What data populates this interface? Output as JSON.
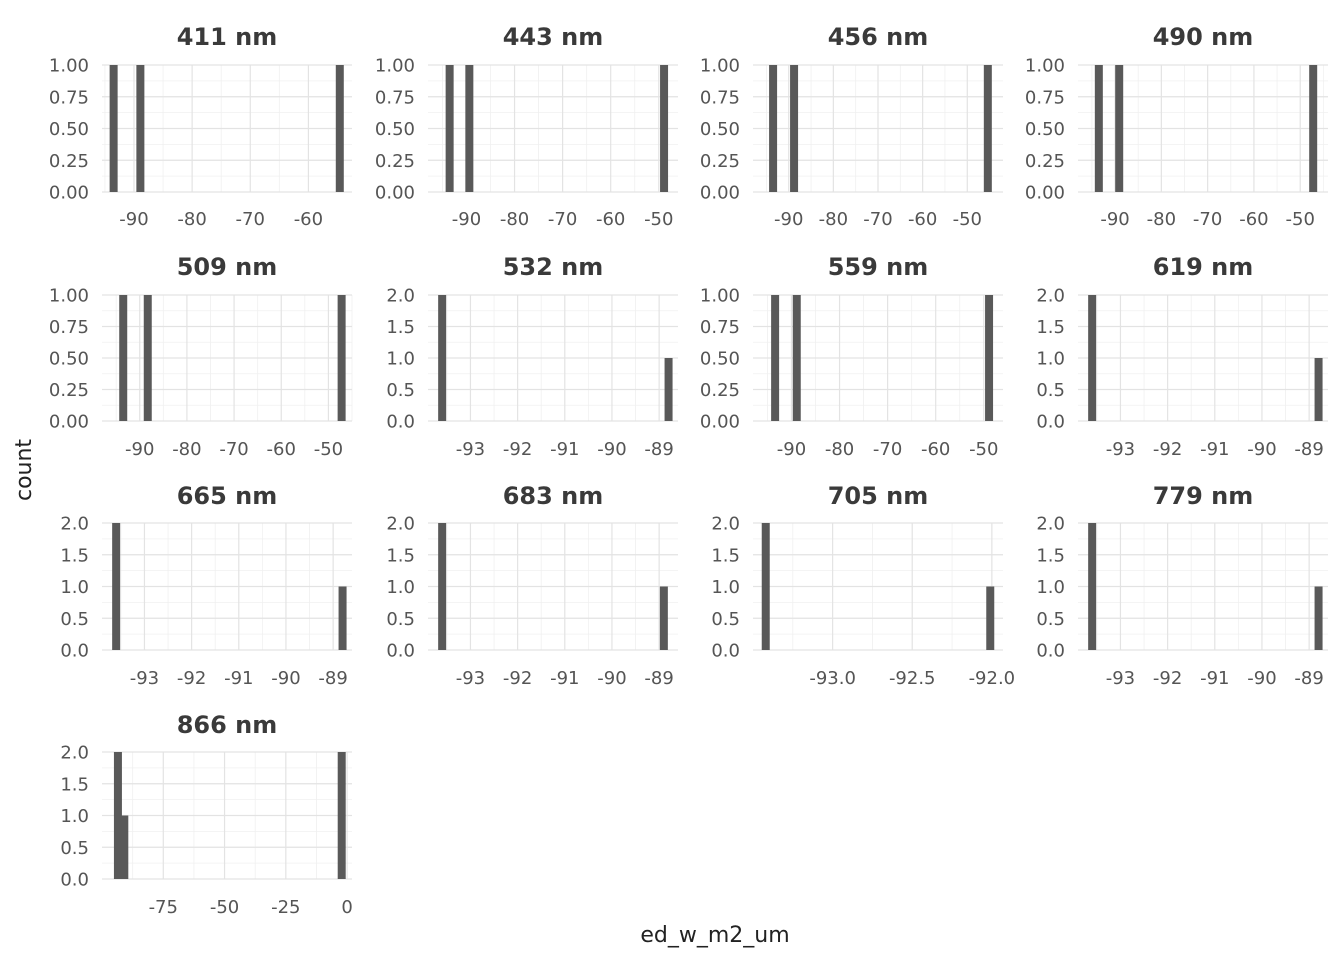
{
  "chart_data": {
    "type": "bar",
    "layout": "facet grid, 4 columns",
    "xlabel": "ed_w_m2_um",
    "ylabel": "count",
    "grid": true,
    "panels": [
      {
        "title": "411 nm",
        "xlim": [
          -95.5,
          -52.5
        ],
        "ylim": [
          0,
          1
        ],
        "xticks": [
          -90,
          -80,
          -70,
          -60
        ],
        "yticks": [
          0,
          0.25,
          0.5,
          0.75,
          1
        ],
        "yticklabels": [
          "0.00",
          "0.25",
          "0.50",
          "0.75",
          "1.00"
        ],
        "xticklabels": [
          "-90",
          "-80",
          "-70",
          "-60"
        ],
        "bars": [
          {
            "x": -93.5,
            "y": 1
          },
          {
            "x": -88.9,
            "y": 1
          },
          {
            "x": -54.6,
            "y": 1
          }
        ]
      },
      {
        "title": "443 nm",
        "xlim": [
          -98,
          -46
        ],
        "ylim": [
          0,
          1
        ],
        "xticks": [
          -90,
          -80,
          -70,
          -60,
          -50
        ],
        "yticks": [
          0,
          0.25,
          0.5,
          0.75,
          1
        ],
        "yticklabels": [
          "0.00",
          "0.25",
          "0.50",
          "0.75",
          "1.00"
        ],
        "xticklabels": [
          "-90",
          "-80",
          "-70",
          "-60",
          "-50"
        ],
        "bars": [
          {
            "x": -93.5,
            "y": 1
          },
          {
            "x": -89.4,
            "y": 1
          },
          {
            "x": -48.9,
            "y": 1
          }
        ]
      },
      {
        "title": "456 nm",
        "xlim": [
          -98,
          -42
        ],
        "ylim": [
          0,
          1
        ],
        "xticks": [
          -90,
          -80,
          -70,
          -60,
          -50
        ],
        "yticks": [
          0,
          0.25,
          0.5,
          0.75,
          1
        ],
        "yticklabels": [
          "0.00",
          "0.25",
          "0.50",
          "0.75",
          "1.00"
        ],
        "xticklabels": [
          "-90",
          "-80",
          "-70",
          "-60",
          "-50"
        ],
        "bars": [
          {
            "x": -93.5,
            "y": 1
          },
          {
            "x": -88.8,
            "y": 1
          },
          {
            "x": -45.4,
            "y": 1
          }
        ]
      },
      {
        "title": "490 nm",
        "xlim": [
          -98,
          -44
        ],
        "ylim": [
          0,
          1
        ],
        "xticks": [
          -90,
          -80,
          -70,
          -60,
          -50
        ],
        "yticks": [
          0,
          0.25,
          0.5,
          0.75,
          1
        ],
        "yticklabels": [
          "0.00",
          "0.25",
          "0.50",
          "0.75",
          "1.00"
        ],
        "xticklabels": [
          "-90",
          "-80",
          "-70",
          "-60",
          "-50"
        ],
        "bars": [
          {
            "x": -93.5,
            "y": 1
          },
          {
            "x": -89.1,
            "y": 1
          },
          {
            "x": -47.2,
            "y": 1
          }
        ]
      },
      {
        "title": "509 nm",
        "xlim": [
          -98,
          -45
        ],
        "ylim": [
          0,
          1
        ],
        "xticks": [
          -90,
          -80,
          -70,
          -60,
          -50
        ],
        "yticks": [
          0,
          0.25,
          0.5,
          0.75,
          1
        ],
        "yticklabels": [
          "0.00",
          "0.25",
          "0.50",
          "0.75",
          "1.00"
        ],
        "xticklabels": [
          "-90",
          "-80",
          "-70",
          "-60",
          "-50"
        ],
        "bars": [
          {
            "x": -93.5,
            "y": 1
          },
          {
            "x": -88.3,
            "y": 1
          },
          {
            "x": -47.2,
            "y": 1
          }
        ]
      },
      {
        "title": "532 nm",
        "xlim": [
          -93.9,
          -88.6
        ],
        "ylim": [
          0,
          2
        ],
        "xticks": [
          -93,
          -92,
          -91,
          -90,
          -89
        ],
        "yticks": [
          0,
          0.5,
          1,
          1.5,
          2
        ],
        "yticklabels": [
          "0.0",
          "0.5",
          "1.0",
          "1.5",
          "2.0"
        ],
        "xticklabels": [
          "-93",
          "-92",
          "-91",
          "-90",
          "-89"
        ],
        "bars": [
          {
            "x": -93.6,
            "y": 2
          },
          {
            "x": -88.8,
            "y": 1
          }
        ]
      },
      {
        "title": "559 nm",
        "xlim": [
          -98,
          -46
        ],
        "ylim": [
          0,
          1
        ],
        "xticks": [
          -90,
          -80,
          -70,
          -60,
          -50
        ],
        "yticks": [
          0,
          0.25,
          0.5,
          0.75,
          1
        ],
        "yticklabels": [
          "0.00",
          "0.25",
          "0.50",
          "0.75",
          "1.00"
        ],
        "xticklabels": [
          "-90",
          "-80",
          "-70",
          "-60",
          "-50"
        ],
        "bars": [
          {
            "x": -93.4,
            "y": 1
          },
          {
            "x": -88.9,
            "y": 1
          },
          {
            "x": -48.9,
            "y": 1
          }
        ]
      },
      {
        "title": "619 nm",
        "xlim": [
          -93.9,
          -88.6
        ],
        "ylim": [
          0,
          2
        ],
        "xticks": [
          -93,
          -92,
          -91,
          -90,
          -89
        ],
        "yticks": [
          0,
          0.5,
          1,
          1.5,
          2
        ],
        "yticklabels": [
          "0.0",
          "0.5",
          "1.0",
          "1.5",
          "2.0"
        ],
        "xticklabels": [
          "-93",
          "-92",
          "-91",
          "-90",
          "-89"
        ],
        "bars": [
          {
            "x": -93.6,
            "y": 2
          },
          {
            "x": -88.8,
            "y": 1
          }
        ]
      },
      {
        "title": "665 nm",
        "xlim": [
          -93.9,
          -88.6
        ],
        "ylim": [
          0,
          2
        ],
        "xticks": [
          -93,
          -92,
          -91,
          -90,
          -89
        ],
        "yticks": [
          0,
          0.5,
          1,
          1.5,
          2
        ],
        "yticklabels": [
          "0.0",
          "0.5",
          "1.0",
          "1.5",
          "2.0"
        ],
        "xticklabels": [
          "-93",
          "-92",
          "-91",
          "-90",
          "-89"
        ],
        "bars": [
          {
            "x": -93.6,
            "y": 2
          },
          {
            "x": -88.8,
            "y": 1
          }
        ]
      },
      {
        "title": "683 nm",
        "xlim": [
          -93.9,
          -88.6
        ],
        "ylim": [
          0,
          2
        ],
        "xticks": [
          -93,
          -92,
          -91,
          -90,
          -89
        ],
        "yticks": [
          0,
          0.5,
          1,
          1.5,
          2
        ],
        "yticklabels": [
          "0.0",
          "0.5",
          "1.0",
          "1.5",
          "2.0"
        ],
        "xticklabels": [
          "-93",
          "-92",
          "-91",
          "-90",
          "-89"
        ],
        "bars": [
          {
            "x": -93.6,
            "y": 2
          },
          {
            "x": -88.9,
            "y": 1
          }
        ]
      },
      {
        "title": "705 nm",
        "xlim": [
          -93.5,
          -91.93
        ],
        "ylim": [
          0,
          2
        ],
        "xticks": [
          -93,
          -92.5,
          -92
        ],
        "yticks": [
          0,
          0.5,
          1,
          1.5,
          2
        ],
        "yticklabels": [
          "0.0",
          "0.5",
          "1.0",
          "1.5",
          "2.0"
        ],
        "xticklabels": [
          "-93.0",
          "-92.5",
          "-92.0"
        ],
        "bars": [
          {
            "x": -93.42,
            "y": 2
          },
          {
            "x": -92.01,
            "y": 1
          }
        ]
      },
      {
        "title": "779 nm",
        "xlim": [
          -93.9,
          -88.6
        ],
        "ylim": [
          0,
          2
        ],
        "xticks": [
          -93,
          -92,
          -91,
          -90,
          -89
        ],
        "yticks": [
          0,
          0.5,
          1,
          1.5,
          2
        ],
        "yticklabels": [
          "0.0",
          "0.5",
          "1.0",
          "1.5",
          "2.0"
        ],
        "xticklabels": [
          "-93",
          "-92",
          "-91",
          "-90",
          "-89"
        ],
        "bars": [
          {
            "x": -93.6,
            "y": 2
          },
          {
            "x": -88.8,
            "y": 1
          }
        ]
      },
      {
        "title": "866 nm",
        "xlim": [
          -100,
          2
        ],
        "ylim": [
          0,
          2
        ],
        "xticks": [
          -75,
          -50,
          -25,
          0
        ],
        "yticks": [
          0,
          0.5,
          1,
          1.5,
          2
        ],
        "yticklabels": [
          "0.0",
          "0.5",
          "1.0",
          "1.5",
          "2.0"
        ],
        "xticklabels": [
          "-75",
          "-50",
          "-25",
          "0"
        ],
        "bars": [
          {
            "x": -93.5,
            "y": 2
          },
          {
            "x": -90.9,
            "y": 1
          },
          {
            "x": -2.2,
            "y": 2
          }
        ]
      }
    ]
  }
}
